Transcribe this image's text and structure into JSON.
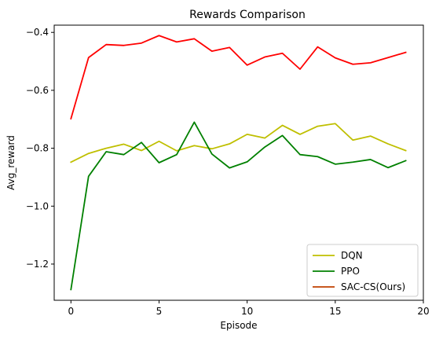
{
  "chart_data": {
    "type": "line",
    "title": "Rewards Comparison",
    "xlabel": "Episode",
    "ylabel": "Avg_reward",
    "xlim": [
      -0.95,
      20
    ],
    "ylim": [
      -1.325,
      -0.375
    ],
    "xticks": [
      0,
      5,
      10,
      15,
      20
    ],
    "yticks": [
      -1.2,
      -1.0,
      -0.8,
      -0.6,
      -0.4
    ],
    "xtick_labels": [
      "0",
      "5",
      "10",
      "15",
      "20"
    ],
    "ytick_labels": [
      "−1.2",
      "−1.0",
      "−0.8",
      "−0.6",
      "−0.4"
    ],
    "grid": false,
    "legend_position": "lower-right",
    "x": [
      0,
      1,
      2,
      3,
      4,
      5,
      6,
      7,
      8,
      9,
      10,
      11,
      12,
      13,
      14,
      15,
      16,
      17,
      18,
      19
    ],
    "series": [
      {
        "name": "DQN",
        "color": "#bfbf00",
        "values": [
          -0.848,
          -0.818,
          -0.8,
          -0.786,
          -0.808,
          -0.776,
          -0.809,
          -0.791,
          -0.802,
          -0.785,
          -0.752,
          -0.765,
          -0.721,
          -0.752,
          -0.724,
          -0.715,
          -0.772,
          -0.758,
          -0.785,
          -0.808
        ]
      },
      {
        "name": "PPO",
        "color": "#008000",
        "values": [
          -1.288,
          -0.897,
          -0.812,
          -0.822,
          -0.78,
          -0.85,
          -0.822,
          -0.71,
          -0.82,
          -0.868,
          -0.847,
          -0.796,
          -0.756,
          -0.822,
          -0.829,
          -0.855,
          -0.848,
          -0.839,
          -0.867,
          -0.843
        ]
      },
      {
        "name": "SAC-CS(Ours)",
        "color": "#ff0000",
        "legend_color": "#c04000",
        "values": [
          -0.698,
          -0.487,
          -0.442,
          -0.445,
          -0.437,
          -0.411,
          -0.433,
          -0.422,
          -0.465,
          -0.452,
          -0.513,
          -0.485,
          -0.472,
          -0.527,
          -0.45,
          -0.488,
          -0.51,
          -0.505,
          -0.487,
          -0.469
        ]
      }
    ]
  }
}
